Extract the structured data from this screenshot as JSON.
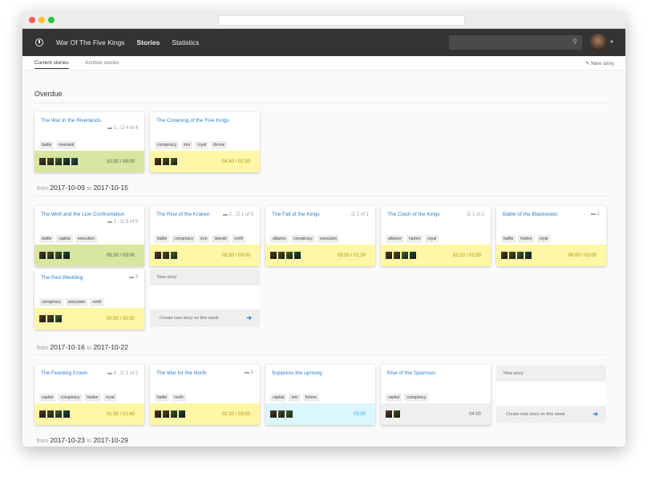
{
  "nav": {
    "project": "War Of The Five Kings",
    "items": [
      "Stories",
      "Statistics"
    ],
    "search_placeholder": ""
  },
  "subnav": {
    "tabs": [
      "Current stories",
      "Archive stories"
    ],
    "new_story": "New story"
  },
  "overdue_label": "Overdue",
  "range_from": "from",
  "range_to": "to",
  "new_card": {
    "header": "New story",
    "footer": "Create new story on this week"
  },
  "weeks": [
    {
      "from": "2017-10-09",
      "to": "2017-10-15",
      "cards": [
        {
          "title": "The War in the Riverlands",
          "comments": "1",
          "tasks": "4 of 4",
          "tags": [
            "battle",
            "riverland"
          ],
          "avatars": 5,
          "time": "10:30 / 08:00",
          "status": "green"
        },
        {
          "title": "The Crowning of the Five Kings",
          "tags": [
            "conspiracy",
            "iron",
            "royal",
            "throne"
          ],
          "avatars": 3,
          "time": "04:40 / 02:30",
          "status": "yellow"
        }
      ]
    },
    {
      "from": "2017-10-16",
      "to": "2017-10-22",
      "cards": [
        {
          "title": "The Wolf and the Lion Confrontation",
          "comments": "2",
          "tasks": "5 of 5",
          "tags": [
            "battle",
            "capital",
            "execution"
          ],
          "avatars": 4,
          "time": "05:30 / 03:00",
          "status": "green"
        },
        {
          "title": "The Rise of the Kraken",
          "comments": "2",
          "tasks": "1 of 2",
          "tags": [
            "battle",
            "conspiracy",
            "iron",
            "islands",
            "north"
          ],
          "avatars": 3,
          "time": "05:50 / 03:00",
          "status": "yellow"
        },
        {
          "title": "The Fall of the Kings",
          "tasks": "1 of 1",
          "tags": [
            "alliance",
            "conspiracy",
            "execution"
          ],
          "avatars": 4,
          "time": "03:50 / 01:30",
          "status": "yellow"
        },
        {
          "title": "The Clash of the Kings",
          "tasks": "1 of 2",
          "tags": [
            "alliance",
            "harbor",
            "royal"
          ],
          "avatars": 4,
          "time": "02:10 / 02:00",
          "status": "yellow"
        },
        {
          "title": "Battle of the Blackwater.",
          "comments": "1",
          "tags": [
            "battle",
            "harbor",
            "royal"
          ],
          "avatars": 4,
          "time": "06:00 / 03:00",
          "status": "yellow"
        },
        {
          "title": "The Red Wedding",
          "comments": "3",
          "tags": [
            "conspiracy",
            "execution",
            "north"
          ],
          "avatars": 3,
          "time": "00:30 / 00:30",
          "status": "yellow"
        }
      ]
    },
    {
      "from": "2017-10-23",
      "to": "2017-10-29",
      "cards": [
        {
          "title": "The Feasting Crows",
          "comments": "4",
          "tasks": "1 of 2",
          "tags": [
            "capital",
            "conspiracy",
            "harbor",
            "royal"
          ],
          "avatars": 4,
          "time": "01:30 / 01:40",
          "status": "yellow"
        },
        {
          "title": "The War for the North",
          "comments": "6",
          "tags": [
            "battle",
            "north"
          ],
          "avatars": 4,
          "time": "02:30 / 03:00",
          "status": "yellow"
        },
        {
          "title": "Suppress the uprising",
          "tags": [
            "capital",
            "iron",
            "throne"
          ],
          "avatars": 3,
          "time": "03:00",
          "status": "cyan"
        },
        {
          "title": "Rise of the Sparrows",
          "tags": [
            "capital",
            "conspiracy"
          ],
          "avatars": 2,
          "time": "04:00",
          "status": "grey"
        }
      ]
    }
  ],
  "colors": {
    "green": "#d8e7a0",
    "yellow": "#fff7a5",
    "cyan": "#dcf6fd",
    "grey": "#efefef",
    "link": "#2a7fd0",
    "navbar": "#333333"
  }
}
